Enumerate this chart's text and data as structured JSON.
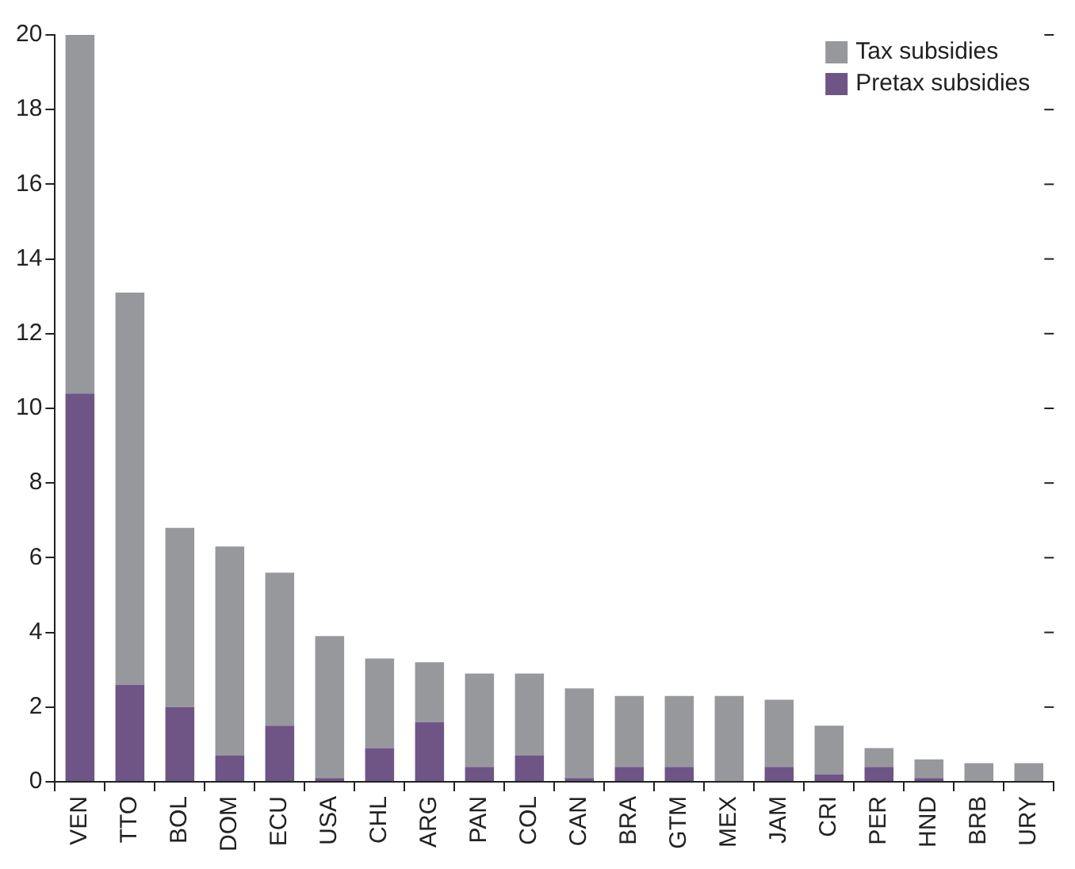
{
  "chart_data": {
    "type": "bar",
    "stacked": true,
    "categories": [
      "VEN",
      "TTO",
      "BOL",
      "DOM",
      "ECU",
      "USA",
      "CHL",
      "ARG",
      "PAN",
      "COL",
      "CAN",
      "BRA",
      "GTM",
      "MEX",
      "JAM",
      "CRI",
      "PER",
      "HND",
      "BRB",
      "URY"
    ],
    "series": [
      {
        "name": "Pretax subsidies",
        "color": "#6e5585",
        "values": [
          10.4,
          2.6,
          2.0,
          0.7,
          1.5,
          0.1,
          0.9,
          1.6,
          0.4,
          0.7,
          0.1,
          0.4,
          0.4,
          0,
          0.4,
          0.2,
          0.4,
          0.1,
          0,
          0
        ]
      },
      {
        "name": "Tax subsidies",
        "color": "#97989c",
        "values": [
          9.6,
          10.5,
          4.8,
          5.6,
          4.1,
          3.8,
          2.4,
          1.6,
          2.5,
          2.2,
          2.4,
          1.9,
          1.9,
          2.3,
          1.8,
          1.3,
          0.5,
          0.5,
          0.5,
          0.5
        ]
      }
    ],
    "ylim": [
      0,
      20
    ],
    "yticks": [
      0,
      2,
      4,
      6,
      8,
      10,
      12,
      14,
      16,
      18,
      20
    ],
    "grid": false,
    "legend": "top right"
  }
}
